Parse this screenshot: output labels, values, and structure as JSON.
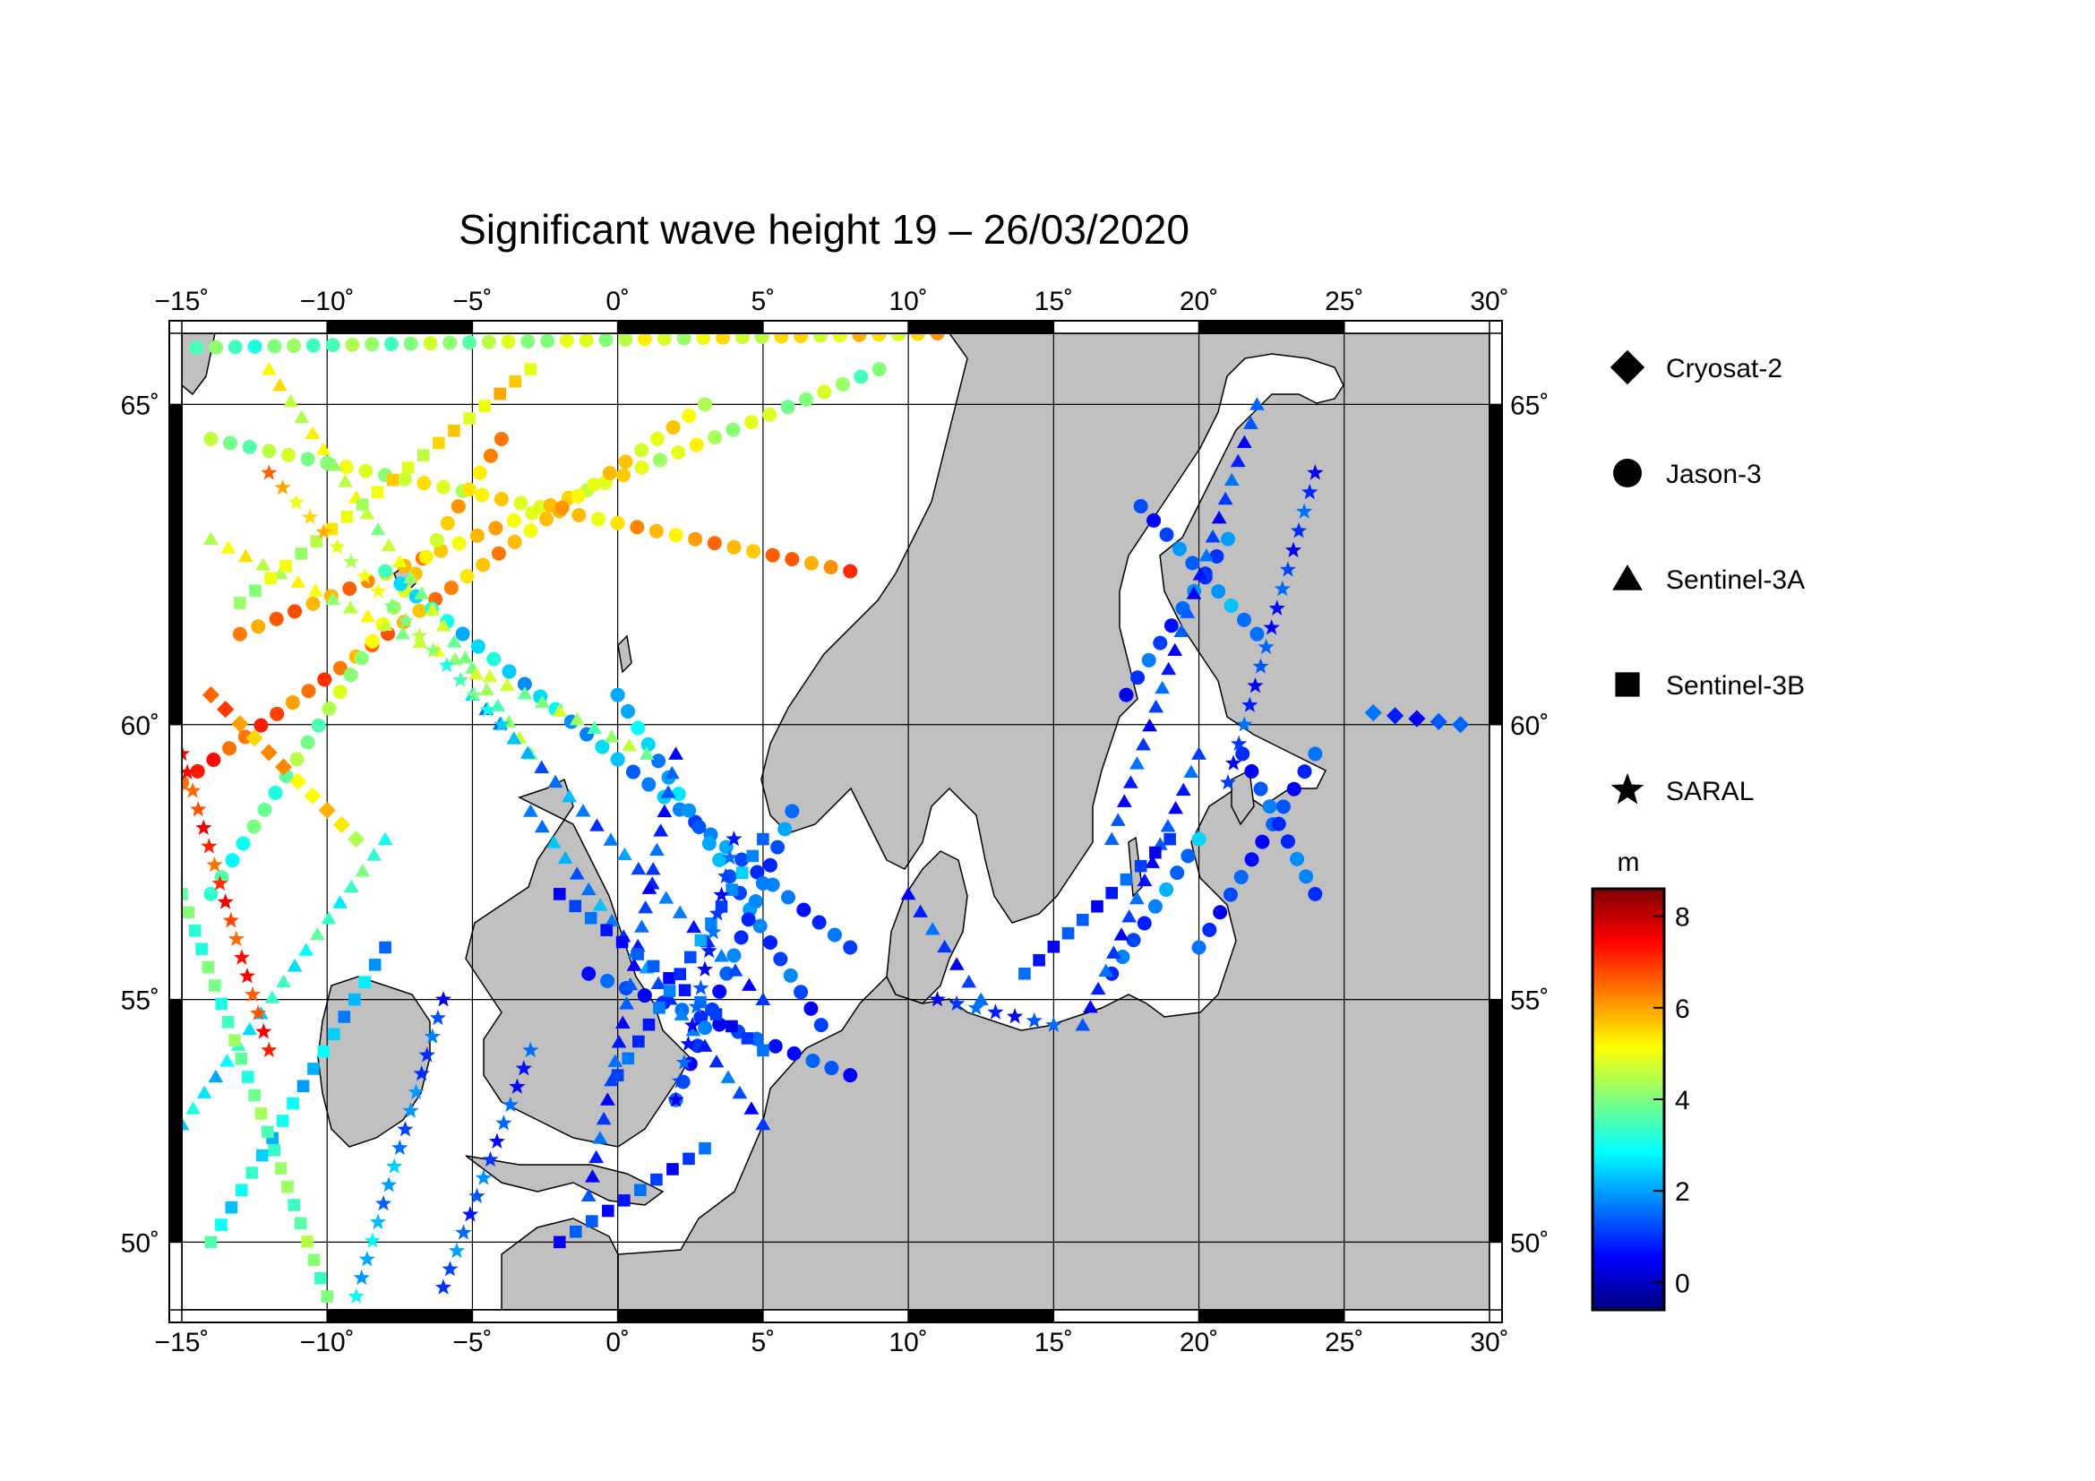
{
  "title": "Significant wave height 19 – 26/03/2020",
  "map": {
    "lon_range": [
      -15,
      30
    ],
    "lat_range": [
      48.5,
      66
    ],
    "lon_ticks": [
      {
        "value": -15,
        "label": "−15˚"
      },
      {
        "value": -10,
        "label": "−10˚"
      },
      {
        "value": -5,
        "label": "−5˚"
      },
      {
        "value": 0,
        "label": "0˚"
      },
      {
        "value": 5,
        "label": "5˚"
      },
      {
        "value": 10,
        "label": "10˚"
      },
      {
        "value": 15,
        "label": "15˚"
      },
      {
        "value": 20,
        "label": "20˚"
      },
      {
        "value": 25,
        "label": "25˚"
      },
      {
        "value": 30,
        "label": "30˚"
      }
    ],
    "lat_ticks": [
      {
        "value": 50,
        "label": "50˚"
      },
      {
        "value": 55,
        "label": "55˚"
      },
      {
        "value": 60,
        "label": "60˚"
      },
      {
        "value": 65,
        "label": "65˚"
      }
    ],
    "land_color": "#c0c0c0",
    "sea_color": "#ffffff",
    "gridlines": true
  },
  "legend": {
    "placement": "right",
    "items": [
      {
        "label": "Cryosat-2",
        "symbol": "diamond"
      },
      {
        "label": "Jason-3",
        "symbol": "circle"
      },
      {
        "label": "Sentinel-3A",
        "symbol": "triangle"
      },
      {
        "label": "Sentinel-3B",
        "symbol": "square"
      },
      {
        "label": "SARAL",
        "symbol": "star"
      }
    ]
  },
  "colorbar": {
    "unit": "m",
    "range": [
      -0.6,
      8.6
    ],
    "ticks": [
      {
        "value": 0,
        "label": "0"
      },
      {
        "value": 2,
        "label": "2"
      },
      {
        "value": 4,
        "label": "4"
      },
      {
        "value": 6,
        "label": "6"
      },
      {
        "value": 8,
        "label": "8"
      }
    ],
    "colormap": [
      "#00007f",
      "#0000ff",
      "#007fff",
      "#00ffff",
      "#7fff7f",
      "#ffff00",
      "#ff7f00",
      "#ff0000",
      "#7f0000"
    ]
  },
  "chart_data": {
    "type": "scatter",
    "title": "Significant wave height 19 – 26/03/2020",
    "xlabel": "",
    "ylabel": "",
    "xlim": [
      -15,
      30
    ],
    "ylim": [
      48.5,
      66
    ],
    "tracks": [
      {
        "satellite": "Jason-3",
        "from": [
          -14.5,
          65.8
        ],
        "to": [
          11,
          66
        ],
        "hs_from": 3.5,
        "hs_to": 5.5
      },
      {
        "satellite": "Jason-3",
        "from": [
          -14,
          64.5
        ],
        "to": [
          8,
          62.5
        ],
        "hs_from": 4,
        "hs_to": 6.5
      },
      {
        "satellite": "Jason-3",
        "from": [
          -13,
          61.5
        ],
        "to": [
          9,
          65.5
        ],
        "hs_from": 6.5,
        "hs_to": 4
      },
      {
        "satellite": "Jason-3",
        "from": [
          -15,
          59
        ],
        "to": [
          3,
          65
        ],
        "hs_from": 7,
        "hs_to": 5
      },
      {
        "satellite": "Jason-3",
        "from": [
          -14,
          57
        ],
        "to": [
          -4,
          64.5
        ],
        "hs_from": 3,
        "hs_to": 6
      },
      {
        "satellite": "Jason-3",
        "from": [
          -8,
          62.5
        ],
        "to": [
          8,
          56
        ],
        "hs_from": 3,
        "hs_to": 1
      },
      {
        "satellite": "Jason-3",
        "from": [
          0,
          60.5
        ],
        "to": [
          7,
          54.5
        ],
        "hs_from": 2.5,
        "hs_to": 1
      },
      {
        "satellite": "Jason-3",
        "from": [
          -1,
          55.5
        ],
        "to": [
          8,
          53.5
        ],
        "hs_from": 1,
        "hs_to": 1
      },
      {
        "satellite": "Jason-3",
        "from": [
          2,
          53
        ],
        "to": [
          6,
          58.5
        ],
        "hs_from": 1,
        "hs_to": 1.5
      },
      {
        "satellite": "Jason-3",
        "from": [
          18,
          63.5
        ],
        "to": [
          22,
          61.5
        ],
        "hs_from": 1,
        "hs_to": 2
      },
      {
        "satellite": "Jason-3",
        "from": [
          17.5,
          60.5
        ],
        "to": [
          21,
          63
        ],
        "hs_from": 1,
        "hs_to": 1.5
      },
      {
        "satellite": "Jason-3",
        "from": [
          17,
          55.5
        ],
        "to": [
          20,
          58
        ],
        "hs_from": 1,
        "hs_to": 2
      },
      {
        "satellite": "Jason-3",
        "from": [
          20,
          56
        ],
        "to": [
          24,
          59.5
        ],
        "hs_from": 1,
        "hs_to": 1
      },
      {
        "satellite": "Jason-3",
        "from": [
          21.5,
          59.5
        ],
        "to": [
          24,
          57
        ],
        "hs_from": 1,
        "hs_to": 1.5
      },
      {
        "satellite": "Sentinel-3A",
        "from": [
          -14,
          63
        ],
        "to": [
          1,
          59.5
        ],
        "hs_from": 5,
        "hs_to": 4
      },
      {
        "satellite": "Sentinel-3A",
        "from": [
          -12,
          65.5
        ],
        "to": [
          -3,
          59.5
        ],
        "hs_from": 5,
        "hs_to": 4
      },
      {
        "satellite": "Sentinel-3A",
        "from": [
          -5,
          60.5
        ],
        "to": [
          5,
          55
        ],
        "hs_from": 2,
        "hs_to": 1
      },
      {
        "satellite": "Sentinel-3A",
        "from": [
          -3,
          58.5
        ],
        "to": [
          5,
          52.5
        ],
        "hs_from": 2,
        "hs_to": 1
      },
      {
        "satellite": "Sentinel-3A",
        "from": [
          2,
          59.5
        ],
        "to": [
          -1,
          51
        ],
        "hs_from": 1,
        "hs_to": 1
      },
      {
        "satellite": "Sentinel-3A",
        "from": [
          22,
          65
        ],
        "to": [
          17,
          58
        ],
        "hs_from": 1,
        "hs_to": 1
      },
      {
        "satellite": "Sentinel-3A",
        "from": [
          16,
          54.5
        ],
        "to": [
          20,
          59.5
        ],
        "hs_from": 1,
        "hs_to": 1
      },
      {
        "satellite": "Sentinel-3A",
        "from": [
          10,
          57
        ],
        "to": [
          12.5,
          55
        ],
        "hs_from": 1,
        "hs_to": 1
      },
      {
        "satellite": "Sentinel-3A",
        "from": [
          -15,
          52.5
        ],
        "to": [
          -8,
          58
        ],
        "hs_from": 2.5,
        "hs_to": 3.5
      },
      {
        "satellite": "Sentinel-3B",
        "from": [
          -14,
          50
        ],
        "to": [
          -8,
          56
        ],
        "hs_from": 3,
        "hs_to": 2
      },
      {
        "satellite": "Sentinel-3B",
        "from": [
          -10,
          48.8
        ],
        "to": [
          -15,
          57
        ],
        "hs_from": 4,
        "hs_to": 3.5
      },
      {
        "satellite": "Sentinel-3B",
        "from": [
          -2,
          57
        ],
        "to": [
          5,
          54
        ],
        "hs_from": 1,
        "hs_to": 1
      },
      {
        "satellite": "Sentinel-3B",
        "from": [
          0,
          53.5
        ],
        "to": [
          5,
          58
        ],
        "hs_from": 1,
        "hs_to": 2
      },
      {
        "satellite": "Sentinel-3B",
        "from": [
          14,
          55.5
        ],
        "to": [
          19,
          58
        ],
        "hs_from": 1,
        "hs_to": 1
      },
      {
        "satellite": "Sentinel-3B",
        "from": [
          -13,
          62
        ],
        "to": [
          -3,
          65.5
        ],
        "hs_from": 4.5,
        "hs_to": 5.5
      },
      {
        "satellite": "Sentinel-3B",
        "from": [
          -2,
          50
        ],
        "to": [
          3,
          52
        ],
        "hs_from": 1,
        "hs_to": 1
      },
      {
        "satellite": "SARAL",
        "from": [
          -15,
          59.5
        ],
        "to": [
          -12,
          54
        ],
        "hs_from": 7,
        "hs_to": 7
      },
      {
        "satellite": "SARAL",
        "from": [
          -9,
          48.8
        ],
        "to": [
          -6,
          55
        ],
        "hs_from": 2.5,
        "hs_to": 1
      },
      {
        "satellite": "SARAL",
        "from": [
          -6,
          49
        ],
        "to": [
          -3,
          54
        ],
        "hs_from": 1.5,
        "hs_to": 1
      },
      {
        "satellite": "SARAL",
        "from": [
          4,
          58
        ],
        "to": [
          2,
          53
        ],
        "hs_from": 1,
        "hs_to": 1
      },
      {
        "satellite": "SARAL",
        "from": [
          -12,
          64
        ],
        "to": [
          -4,
          60
        ],
        "hs_from": 6,
        "hs_to": 3
      },
      {
        "satellite": "SARAL",
        "from": [
          21,
          59
        ],
        "to": [
          24,
          64
        ],
        "hs_from": 1,
        "hs_to": 1
      },
      {
        "satellite": "SARAL",
        "from": [
          11,
          55
        ],
        "to": [
          15,
          54.5
        ],
        "hs_from": 1,
        "hs_to": 1
      },
      {
        "satellite": "Cryosat-2",
        "from": [
          -14,
          60.5
        ],
        "to": [
          -9,
          58
        ],
        "hs_from": 6.5,
        "hs_to": 5
      },
      {
        "satellite": "Cryosat-2",
        "from": [
          26,
          60.2
        ],
        "to": [
          29,
          60
        ],
        "hs_from": 1,
        "hs_to": 1
      }
    ]
  }
}
